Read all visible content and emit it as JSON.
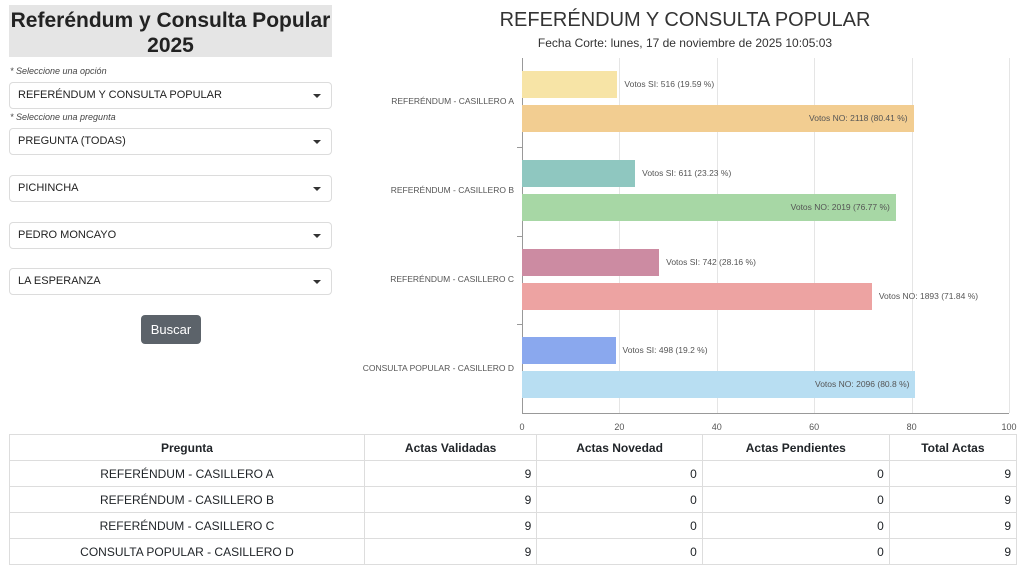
{
  "sidebar": {
    "title": "Referéndum y Consulta Popular 2025",
    "label_option": "* Seleccione una opción",
    "select_option": "REFERÉNDUM Y CONSULTA POPULAR",
    "label_question": "* Seleccione una pregunta",
    "select_question": "PREGUNTA (TODAS)",
    "select_province": "PICHINCHA",
    "select_canton": "PEDRO MONCAYO",
    "select_parish": "LA ESPERANZA",
    "search_button": "Buscar"
  },
  "chart_data": {
    "type": "bar",
    "orientation": "horizontal",
    "title": "REFERÉNDUM Y CONSULTA POPULAR",
    "subtitle": "Fecha Corte: lunes, 17 de noviembre de 2025 10:05:03",
    "xlim": [
      0,
      100
    ],
    "xticks": [
      "0",
      "20",
      "40",
      "60",
      "80",
      "100"
    ],
    "grid": true,
    "categories": [
      "REFERÉNDUM - CASILLERO A",
      "REFERÉNDUM - CASILLERO B",
      "REFERÉNDUM - CASILLERO C",
      "CONSULTA POPULAR - CASILLERO D"
    ],
    "series": [
      {
        "name": "SI",
        "values": [
          19.59,
          23.23,
          28.16,
          19.2
        ],
        "votes": [
          516,
          611,
          742,
          498
        ],
        "labels": [
          "Votos SI: 516 (19.59 %)",
          "Votos SI: 611 (23.23 %)",
          "Votos SI: 742 (28.16 %)",
          "Votos SI: 498 (19.2 %)"
        ],
        "colors": [
          "#f7e4a6",
          "#8fc7c0",
          "#cc8ba2",
          "#8aa8ee"
        ]
      },
      {
        "name": "NO",
        "values": [
          80.41,
          76.77,
          71.84,
          80.8
        ],
        "votes": [
          2118,
          2019,
          1893,
          2096
        ],
        "labels": [
          "Votos NO: 2118 (80.41 %)",
          "Votos NO: 2019 (76.77 %)",
          "Votos NO: 1893 (71.84 %)",
          "Votos NO: 2096 (80.8 %)"
        ],
        "colors": [
          "#f2cd91",
          "#a7d7a5",
          "#eda3a2",
          "#b8def2"
        ]
      }
    ]
  },
  "table": {
    "headers": [
      "Pregunta",
      "Actas Validadas",
      "Actas Novedad",
      "Actas Pendientes",
      "Total Actas"
    ],
    "rows": [
      [
        "REFERÉNDUM - CASILLERO A",
        "9",
        "0",
        "0",
        "9"
      ],
      [
        "REFERÉNDUM - CASILLERO B",
        "9",
        "0",
        "0",
        "9"
      ],
      [
        "REFERÉNDUM - CASILLERO C",
        "9",
        "0",
        "0",
        "9"
      ],
      [
        "CONSULTA POPULAR - CASILLERO D",
        "9",
        "0",
        "0",
        "9"
      ]
    ]
  }
}
